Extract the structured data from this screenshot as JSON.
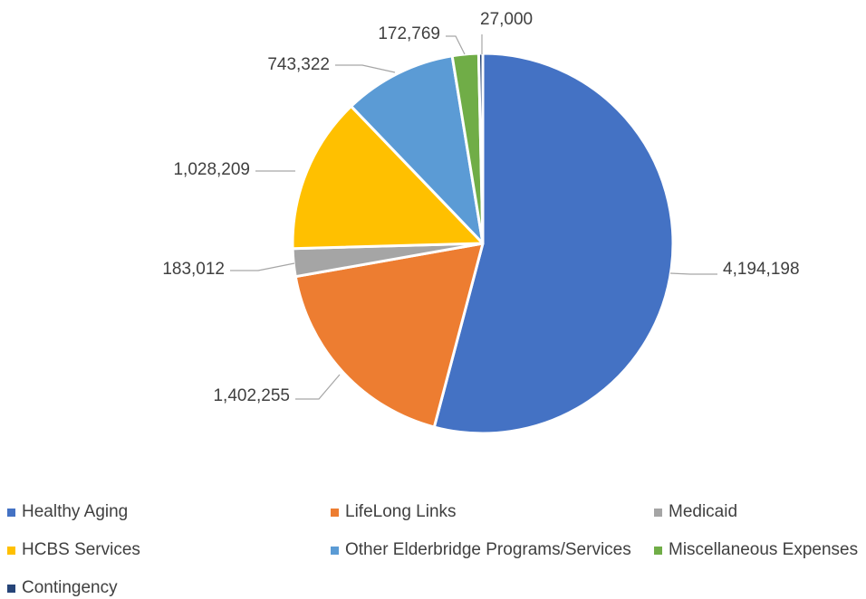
{
  "chart_data": {
    "type": "pie",
    "title": "",
    "categories": [
      "Healthy Aging",
      "LifeLong Links",
      "Medicaid",
      "HCBS Services",
      "Other Elderbridge Programs/Services",
      "Miscellaneous Expenses",
      "Contingency"
    ],
    "values": [
      4194198,
      1402255,
      183012,
      1028209,
      743322,
      172769,
      27000
    ],
    "value_labels": [
      "4,194,198",
      "1,402,255",
      "183,012",
      "1,028,209",
      "743,322",
      "172,769",
      "27,000"
    ],
    "colors": [
      "#4472C4",
      "#ED7D31",
      "#A5A5A5",
      "#FFC000",
      "#5B9BD5",
      "#70AD47",
      "#264478"
    ],
    "start_angle_deg": 0,
    "direction": "clockwise",
    "legend_position": "bottom"
  }
}
